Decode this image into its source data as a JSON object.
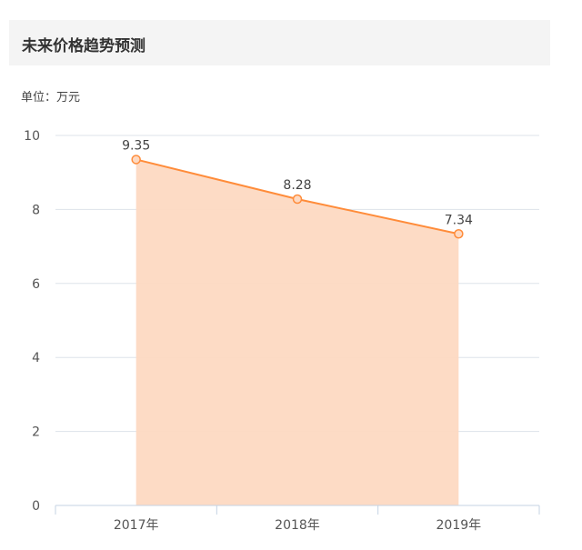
{
  "header": {
    "title": "未来价格趋势预测"
  },
  "unit_label": "单位：万元",
  "chart_data": {
    "type": "area",
    "categories": [
      "2017年",
      "2018年",
      "2019年"
    ],
    "values": [
      9.35,
      8.28,
      7.34
    ],
    "data_labels": [
      "9.35",
      "8.28",
      "7.34"
    ],
    "ylim": [
      0,
      10
    ],
    "yticks": [
      0,
      2,
      4,
      6,
      8,
      10
    ],
    "grid": true,
    "legend": "none",
    "colors": {
      "line": "#ff8c3a",
      "fill": "#fdd9c2",
      "grid": "#dde3ea",
      "axis": "#c5d3e3"
    }
  }
}
